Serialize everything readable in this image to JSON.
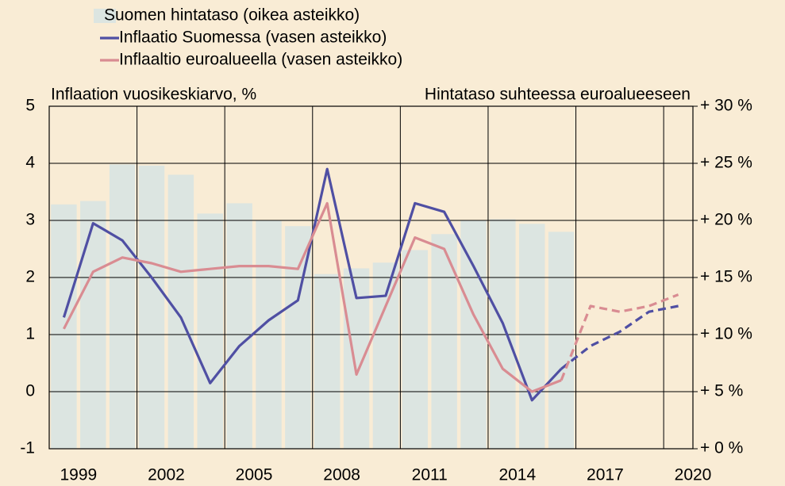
{
  "chart_data": {
    "type": "bar-line",
    "legend": "top-left",
    "y_title": "Inflaation vuosikeskiarvo, %",
    "y2_title": "Hintataso suhteessa euroalueeseen",
    "x": [
      1998,
      1999,
      2000,
      2001,
      2002,
      2003,
      2004,
      2005,
      2006,
      2007,
      2008,
      2009,
      2010,
      2011,
      2012,
      2013,
      2014,
      2015,
      2016,
      2017,
      2018,
      2019
    ],
    "xlim": [
      1998,
      2020
    ],
    "xticks": [
      1999,
      2002,
      2005,
      2008,
      2011,
      2014,
      2017,
      2020
    ],
    "x_gridlines": [
      2001,
      2004,
      2007,
      2010,
      2013,
      2016,
      2019
    ],
    "ylim": [
      -1,
      5
    ],
    "yticks": [
      -1,
      0,
      1,
      2,
      3,
      4,
      5
    ],
    "y2lim": [
      0,
      30
    ],
    "y2ticks": [
      {
        "value": 0,
        "label": "+ 0 %"
      },
      {
        "value": 5,
        "label": "+ 5 %"
      },
      {
        "value": 10,
        "label": "+ 10 %"
      },
      {
        "value": 15,
        "label": "+ 15 %"
      },
      {
        "value": 20,
        "label": "+ 20 %"
      },
      {
        "value": 25,
        "label": "+ 25 %"
      },
      {
        "value": 30,
        "label": "+ 30 %"
      }
    ],
    "grid": true,
    "forecast_start": 2015,
    "series": [
      {
        "name": "Suomen hintataso (oikea asteikko)",
        "kind": "bar",
        "axis": "y2",
        "color": "#dce5e1",
        "values": [
          21.4,
          21.7,
          24.9,
          24.8,
          24.0,
          20.6,
          21.5,
          20.0,
          19.5,
          15.3,
          15.8,
          16.3,
          17.4,
          18.8,
          20.0,
          20.1,
          19.7,
          19.0,
          null,
          null,
          null,
          null
        ]
      },
      {
        "name": "Inflaatio Suomessa (vasen asteikko)",
        "kind": "line",
        "axis": "y",
        "color": "#4f4fa3",
        "values": [
          1.3,
          2.95,
          2.65,
          2.0,
          1.3,
          0.15,
          0.8,
          1.25,
          1.6,
          3.9,
          1.64,
          1.68,
          3.3,
          3.15,
          2.2,
          1.2,
          -0.15,
          0.4,
          0.8,
          1.05,
          1.4,
          1.5
        ]
      },
      {
        "name": "Inflaaltio euroalueella (vasen asteikko)",
        "kind": "line",
        "axis": "y",
        "color": "#d98c92",
        "values": [
          1.1,
          2.1,
          2.35,
          2.25,
          2.1,
          2.15,
          2.2,
          2.2,
          2.15,
          3.3,
          0.3,
          1.5,
          2.7,
          2.5,
          1.35,
          0.4,
          0.0,
          0.2,
          1.5,
          1.4,
          1.5,
          1.7
        ]
      }
    ]
  }
}
